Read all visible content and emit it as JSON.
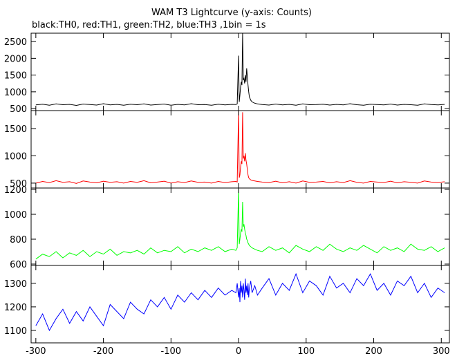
{
  "chart_data": [
    {
      "type": "line",
      "title": "WAM T3 Lightcurve (y-axis: Counts)",
      "subtitle": "black:TH0, red:TH1, green:TH2, blue:TH3 ,1bin = 1s",
      "x": [
        -300,
        -290,
        -280,
        -270,
        -260,
        -250,
        -240,
        -230,
        -220,
        -210,
        -200,
        -190,
        -180,
        -170,
        -160,
        -150,
        -140,
        -130,
        -120,
        -110,
        -100,
        -90,
        -80,
        -70,
        -60,
        -50,
        -40,
        -30,
        -20,
        -10,
        -4,
        -2,
        0,
        1,
        2,
        3,
        4,
        5,
        6,
        7,
        8,
        9,
        10,
        11,
        12,
        13,
        14,
        15,
        16,
        18,
        20,
        24,
        28,
        35,
        45,
        55,
        65,
        75,
        85,
        95,
        105,
        115,
        125,
        135,
        145,
        155,
        165,
        175,
        185,
        195,
        205,
        215,
        225,
        235,
        245,
        255,
        265,
        275,
        285,
        295,
        305
      ],
      "series": [
        {
          "color": "#000000",
          "values": [
            610,
            630,
            600,
            640,
            615,
            625,
            595,
            635,
            620,
            605,
            645,
            610,
            625,
            600,
            630,
            615,
            640,
            605,
            620,
            635,
            600,
            625,
            610,
            645,
            615,
            620,
            600,
            630,
            610,
            625,
            620,
            640,
            2080,
            700,
            900,
            1150,
            1300,
            1200,
            2750,
            1350,
            1400,
            1250,
            1500,
            1300,
            1700,
            1450,
            1200,
            1000,
            850,
            750,
            700,
            660,
            640,
            620,
            605,
            635,
            610,
            625,
            600,
            640,
            615,
            620,
            630,
            605,
            625,
            610,
            645,
            615,
            600,
            630,
            620,
            610,
            635,
            605,
            625,
            615,
            600,
            640,
            620,
            610,
            625
          ]
        }
      ],
      "xlim": [
        -307,
        312
      ],
      "xticks": [
        -300,
        -200,
        -100,
        0,
        100,
        200,
        300
      ],
      "ylim": [
        440,
        2750
      ],
      "yticks": [
        500,
        1000,
        1500,
        2000,
        2500
      ]
    },
    {
      "type": "line",
      "x": [
        -300,
        -290,
        -280,
        -270,
        -260,
        -250,
        -240,
        -230,
        -220,
        -210,
        -200,
        -190,
        -180,
        -170,
        -160,
        -150,
        -140,
        -130,
        -120,
        -110,
        -100,
        -90,
        -80,
        -70,
        -60,
        -50,
        -40,
        -30,
        -20,
        -10,
        -4,
        -2,
        0,
        1,
        2,
        3,
        4,
        5,
        6,
        7,
        8,
        9,
        10,
        11,
        12,
        13,
        14,
        15,
        16,
        18,
        20,
        24,
        28,
        35,
        45,
        55,
        65,
        75,
        85,
        95,
        105,
        115,
        125,
        135,
        145,
        155,
        165,
        175,
        185,
        195,
        205,
        215,
        225,
        235,
        245,
        255,
        265,
        275,
        285,
        295,
        305
      ],
      "series": [
        {
          "color": "#ff0000",
          "values": [
            500,
            530,
            510,
            545,
            515,
            525,
            495,
            540,
            520,
            505,
            535,
            515,
            525,
            500,
            530,
            515,
            545,
            505,
            520,
            535,
            500,
            525,
            510,
            540,
            515,
            520,
            500,
            530,
            510,
            525,
            530,
            520,
            1820,
            600,
            650,
            800,
            900,
            850,
            1800,
            950,
            1000,
            900,
            1050,
            920,
            850,
            750,
            650,
            600,
            580,
            560,
            550,
            540,
            530,
            520,
            510,
            535,
            505,
            525,
            500,
            540,
            515,
            520,
            530,
            505,
            525,
            510,
            545,
            515,
            500,
            530,
            520,
            510,
            535,
            505,
            525,
            515,
            500,
            540,
            520,
            510,
            525
          ]
        }
      ],
      "xlim": [
        -307,
        312
      ],
      "xticks": [
        -300,
        -200,
        -100,
        0,
        100,
        200,
        300
      ],
      "ylim": [
        410,
        1830
      ],
      "yticks": [
        500,
        1000,
        1500
      ]
    },
    {
      "type": "line",
      "x": [
        -300,
        -290,
        -280,
        -270,
        -260,
        -250,
        -240,
        -230,
        -220,
        -210,
        -200,
        -190,
        -180,
        -170,
        -160,
        -150,
        -140,
        -130,
        -120,
        -110,
        -100,
        -90,
        -80,
        -70,
        -60,
        -50,
        -40,
        -30,
        -20,
        -10,
        -4,
        -2,
        0,
        1,
        2,
        3,
        4,
        5,
        6,
        7,
        8,
        9,
        10,
        11,
        12,
        13,
        14,
        15,
        16,
        18,
        20,
        24,
        28,
        35,
        45,
        55,
        65,
        75,
        85,
        95,
        105,
        115,
        125,
        135,
        145,
        155,
        165,
        175,
        185,
        195,
        205,
        215,
        225,
        235,
        245,
        255,
        265,
        275,
        285,
        295,
        305
      ],
      "series": [
        {
          "color": "#00ff00",
          "values": [
            640,
            680,
            660,
            700,
            650,
            690,
            670,
            710,
            660,
            700,
            680,
            720,
            670,
            700,
            690,
            710,
            680,
            730,
            690,
            710,
            700,
            740,
            690,
            720,
            700,
            730,
            710,
            740,
            700,
            720,
            710,
            730,
            1200,
            760,
            800,
            850,
            880,
            860,
            1100,
            900,
            920,
            880,
            850,
            830,
            800,
            790,
            770,
            760,
            750,
            740,
            730,
            720,
            710,
            700,
            740,
            710,
            730,
            690,
            750,
            720,
            700,
            740,
            710,
            760,
            720,
            700,
            730,
            710,
            750,
            720,
            690,
            740,
            710,
            730,
            700,
            760,
            720,
            710,
            740,
            700,
            730
          ]
        }
      ],
      "xlim": [
        -307,
        312
      ],
      "xticks": [
        -300,
        -200,
        -100,
        0,
        100,
        200,
        300
      ],
      "ylim": [
        589,
        1211
      ],
      "yticks": [
        600,
        800,
        1000,
        1200
      ]
    },
    {
      "type": "line",
      "x": [
        -300,
        -290,
        -280,
        -270,
        -260,
        -250,
        -240,
        -230,
        -220,
        -210,
        -200,
        -190,
        -180,
        -170,
        -160,
        -150,
        -140,
        -130,
        -120,
        -110,
        -100,
        -90,
        -80,
        -70,
        -60,
        -50,
        -40,
        -30,
        -20,
        -10,
        -4,
        -2,
        0,
        1,
        2,
        3,
        4,
        5,
        6,
        7,
        8,
        9,
        10,
        11,
        12,
        13,
        14,
        15,
        16,
        18,
        20,
        24,
        28,
        35,
        45,
        55,
        65,
        75,
        85,
        95,
        105,
        115,
        125,
        135,
        145,
        155,
        165,
        175,
        185,
        195,
        205,
        215,
        225,
        235,
        245,
        255,
        265,
        275,
        285,
        295,
        305
      ],
      "series": [
        {
          "color": "#0000ff",
          "values": [
            1120,
            1170,
            1100,
            1150,
            1190,
            1130,
            1180,
            1140,
            1200,
            1160,
            1120,
            1210,
            1180,
            1150,
            1220,
            1190,
            1170,
            1230,
            1200,
            1240,
            1190,
            1250,
            1220,
            1260,
            1230,
            1270,
            1240,
            1280,
            1250,
            1270,
            1260,
            1300,
            1240,
            1280,
            1220,
            1310,
            1260,
            1290,
            1240,
            1300,
            1270,
            1230,
            1320,
            1260,
            1290,
            1250,
            1300,
            1240,
            1280,
            1310,
            1260,
            1290,
            1250,
            1280,
            1320,
            1250,
            1300,
            1270,
            1340,
            1260,
            1310,
            1290,
            1250,
            1330,
            1280,
            1300,
            1260,
            1320,
            1290,
            1340,
            1270,
            1300,
            1250,
            1310,
            1290,
            1330,
            1260,
            1300,
            1240,
            1280,
            1260
          ]
        }
      ],
      "xlim": [
        -307,
        312
      ],
      "xticks": [
        -300,
        -200,
        -100,
        0,
        100,
        200,
        300
      ],
      "ylim": [
        1047,
        1376
      ],
      "yticks": [
        1100,
        1200,
        1300
      ]
    }
  ]
}
